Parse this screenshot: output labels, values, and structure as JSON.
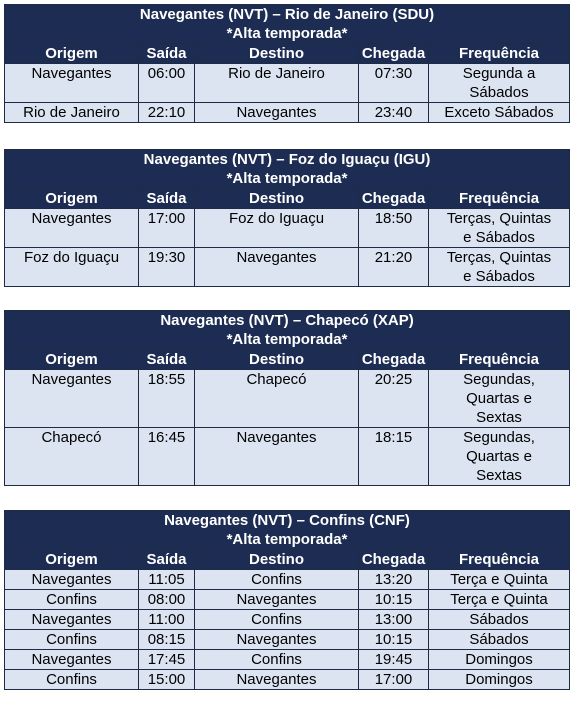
{
  "headers": [
    "Origem",
    "Saída",
    "Destino",
    "Chegada",
    "Frequência"
  ],
  "tables": [
    {
      "title": "Navegantes (NVT) – Rio de Janeiro (SDU)",
      "subtitle": "*Alta temporada*",
      "rows": [
        [
          "Navegantes",
          "06:00",
          "Rio de Janeiro",
          "07:30",
          "Segunda a\nSábados"
        ],
        [
          "Rio de Janeiro",
          "22:10",
          "Navegantes",
          "23:40",
          "Exceto Sábados"
        ]
      ]
    },
    {
      "title": "Navegantes (NVT) – Foz do Iguaçu (IGU)",
      "subtitle": "*Alta temporada*",
      "rows": [
        [
          "Navegantes",
          "17:00",
          "Foz do Iguaçu",
          "18:50",
          "Terças, Quintas\ne Sábados"
        ],
        [
          "Foz do Iguaçu",
          "19:30",
          "Navegantes",
          "21:20",
          "Terças, Quintas\ne Sábados"
        ]
      ]
    },
    {
      "title": "Navegantes (NVT) – Chapecó (XAP)",
      "subtitle": "*Alta temporada*",
      "rows": [
        [
          "Navegantes",
          "18:55",
          "Chapecó",
          "20:25",
          "Segundas,\nQuartas e\nSextas"
        ],
        [
          "Chapecó",
          "16:45",
          "Navegantes",
          "18:15",
          "Segundas,\nQuartas e\nSextas"
        ]
      ]
    },
    {
      "title": "Navegantes (NVT) – Confins (CNF)",
      "subtitle": "*Alta temporada*",
      "rows": [
        [
          "Navegantes",
          "11:05",
          "Confins",
          "13:20",
          "Terça e Quinta"
        ],
        [
          "Confins",
          "08:00",
          "Navegantes",
          "10:15",
          "Terça e Quinta"
        ],
        [
          "Navegantes",
          "11:00",
          "Confins",
          "13:00",
          "Sábados"
        ],
        [
          "Confins",
          "08:15",
          "Navegantes",
          "10:15",
          "Sábados"
        ],
        [
          "Navegantes",
          "17:45",
          "Confins",
          "19:45",
          "Domingos"
        ],
        [
          "Confins",
          "15:00",
          "Navegantes",
          "17:00",
          "Domingos"
        ]
      ]
    }
  ]
}
